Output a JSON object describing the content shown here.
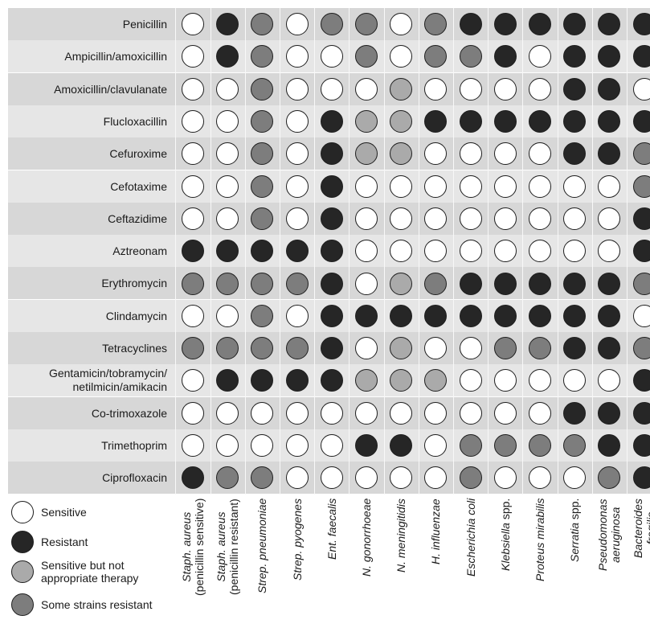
{
  "chart_data": {
    "type": "table",
    "rows": [
      "Penicillin",
      "Ampicillin/amoxicillin",
      "Amoxicillin/clavulanate",
      "Flucloxacillin",
      "Cefuroxime",
      "Cefotaxime",
      "Ceftazidime",
      "Aztreonam",
      "Erythromycin",
      "Clindamycin",
      "Tetracyclines",
      [
        "Gentamicin/tobramycin/",
        "netilmicin/amikacin"
      ],
      "Co-trimoxazole",
      "Trimethoprim",
      "Ciprofloxacin"
    ],
    "columns": [
      [
        {
          "t": "Staph. aureus"
        },
        {
          "t": "(penicillin sensitive)",
          "upright": true
        }
      ],
      [
        {
          "t": "Staph. aureus"
        },
        {
          "t": "(penicillin resistant)",
          "upright": true
        }
      ],
      [
        {
          "t": "Strep. pneumoniae"
        }
      ],
      [
        {
          "t": "Strep. pyogenes"
        }
      ],
      [
        {
          "t": "Ent. faecalis"
        }
      ],
      [
        {
          "t": "N. gonorrhoeae"
        }
      ],
      [
        {
          "t": "N. meningitidis"
        }
      ],
      [
        {
          "t": "H. influenzae"
        }
      ],
      [
        {
          "t": "Escherichia coli"
        }
      ],
      [
        {
          "t": "Klebsiella",
          "suffix": " spp."
        }
      ],
      [
        {
          "t": "Proteus mirabilis"
        }
      ],
      [
        {
          "t": "Serratia",
          "suffix": " spp."
        }
      ],
      [
        {
          "t": "Pseudomonas"
        },
        {
          "t": "aeruginosa"
        }
      ],
      [
        {
          "t": "Bacteroides"
        },
        {
          "t": "fragilis"
        }
      ]
    ],
    "categories": {
      "S": {
        "label": "Sensitive",
        "color": "#ffffff"
      },
      "R": {
        "label": "Resistant",
        "color": "#262626"
      },
      "N": {
        "label": [
          "Sensitive but not",
          "appropriate therapy"
        ],
        "color": "#aaaaaa"
      },
      "V": {
        "label": "Some strains resistant",
        "color": "#7d7d7d"
      }
    },
    "legend_order": [
      "S",
      "R",
      "N",
      "V"
    ],
    "values": [
      [
        "S",
        "R",
        "V",
        "S",
        "V",
        "V",
        "S",
        "V",
        "R",
        "R",
        "R",
        "R",
        "R",
        "R"
      ],
      [
        "S",
        "R",
        "V",
        "S",
        "S",
        "V",
        "S",
        "V",
        "V",
        "R",
        "S",
        "R",
        "R",
        "R"
      ],
      [
        "S",
        "S",
        "V",
        "S",
        "S",
        "S",
        "N",
        "S",
        "S",
        "S",
        "S",
        "R",
        "R",
        "S"
      ],
      [
        "S",
        "S",
        "V",
        "S",
        "R",
        "N",
        "N",
        "R",
        "R",
        "R",
        "R",
        "R",
        "R",
        "R"
      ],
      [
        "S",
        "S",
        "V",
        "S",
        "R",
        "N",
        "N",
        "S",
        "S",
        "S",
        "S",
        "R",
        "R",
        "V"
      ],
      [
        "S",
        "S",
        "V",
        "S",
        "R",
        "S",
        "S",
        "S",
        "S",
        "S",
        "S",
        "S",
        "S",
        "V"
      ],
      [
        "S",
        "S",
        "V",
        "S",
        "R",
        "S",
        "S",
        "S",
        "S",
        "S",
        "S",
        "S",
        "S",
        "R"
      ],
      [
        "R",
        "R",
        "R",
        "R",
        "R",
        "S",
        "S",
        "S",
        "S",
        "S",
        "S",
        "S",
        "S",
        "R"
      ],
      [
        "V",
        "V",
        "V",
        "V",
        "R",
        "S",
        "N",
        "V",
        "R",
        "R",
        "R",
        "R",
        "R",
        "V"
      ],
      [
        "S",
        "S",
        "V",
        "S",
        "R",
        "R",
        "R",
        "R",
        "R",
        "R",
        "R",
        "R",
        "R",
        "S"
      ],
      [
        "V",
        "V",
        "V",
        "V",
        "R",
        "S",
        "N",
        "S",
        "S",
        "V",
        "V",
        "R",
        "R",
        "V"
      ],
      [
        "S",
        "R",
        "R",
        "R",
        "R",
        "N",
        "N",
        "N",
        "S",
        "S",
        "S",
        "S",
        "S",
        "R"
      ],
      [
        "S",
        "S",
        "S",
        "S",
        "S",
        "S",
        "S",
        "S",
        "S",
        "S",
        "S",
        "R",
        "R",
        "R"
      ],
      [
        "S",
        "S",
        "S",
        "S",
        "S",
        "R",
        "R",
        "S",
        "V",
        "V",
        "V",
        "V",
        "R",
        "R"
      ],
      [
        "R",
        "V",
        "V",
        "S",
        "S",
        "S",
        "S",
        "S",
        "V",
        "S",
        "S",
        "S",
        "V",
        "R"
      ]
    ]
  }
}
